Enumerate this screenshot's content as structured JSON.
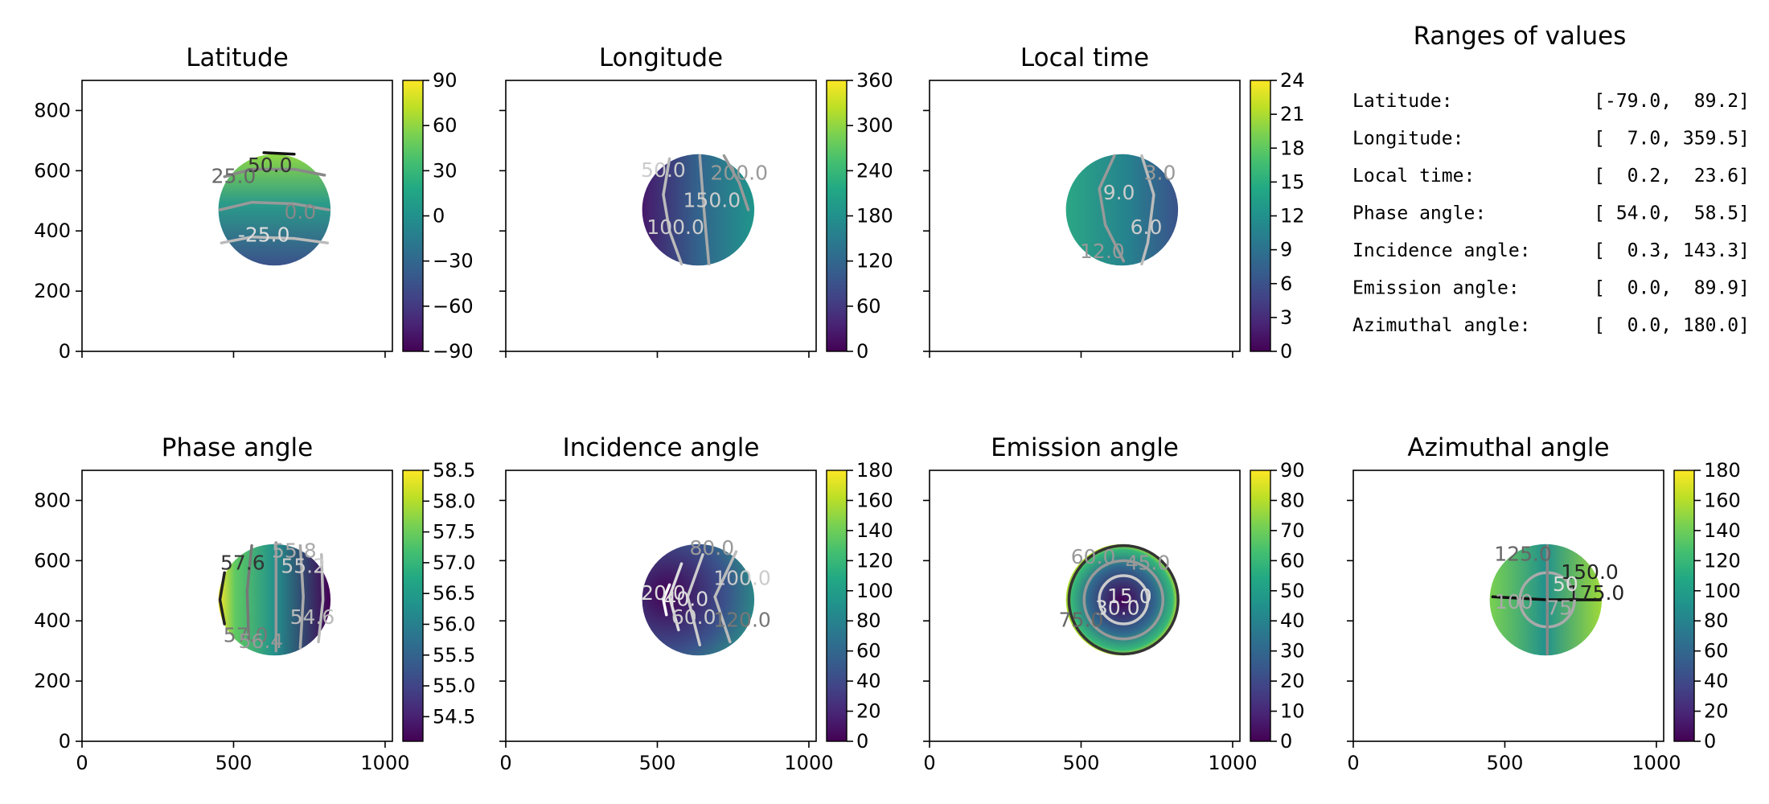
{
  "ranges_panel": {
    "title": "Ranges of values",
    "rows": [
      {
        "label": "Latitude:",
        "value": "[-79.0,  89.2]"
      },
      {
        "label": "Longitude:",
        "value": "[  7.0, 359.5]"
      },
      {
        "label": "Local time:",
        "value": "[  0.2,  23.6]"
      },
      {
        "label": "Phase angle:",
        "value": "[ 54.0,  58.5]"
      },
      {
        "label": "Incidence angle:",
        "value": "[  0.3, 143.3]"
      },
      {
        "label": "Emission angle:",
        "value": "[  0.0,  89.9]"
      },
      {
        "label": "Azimuthal angle:",
        "value": "[  0.0, 180.0]"
      }
    ]
  },
  "chart_data": [
    {
      "type": "heatmap",
      "title": "Latitude",
      "xlim": [
        0,
        1024
      ],
      "ylim": [
        0,
        900
      ],
      "xticks": [
        0,
        500,
        1000
      ],
      "xtick_labels": [],
      "yticks": [
        0,
        200,
        400,
        600,
        800
      ],
      "ytick_labels": [
        "0",
        "200",
        "400",
        "600",
        "800"
      ],
      "disk": {
        "cx": 635,
        "cy": 470,
        "r": 185
      },
      "colorbar": {
        "vmin": -90,
        "vmax": 90,
        "ticks": [
          -90,
          -60,
          -30,
          0,
          30,
          60,
          90
        ],
        "tick_labels": [
          "−90",
          "−60",
          "−30",
          "0",
          "30",
          "60",
          "90"
        ]
      },
      "value_range": [
        -79.0,
        89.2
      ],
      "contour_labels": [
        "50.0",
        "25.0",
        "0.0",
        "-25.0"
      ]
    },
    {
      "type": "heatmap",
      "title": "Longitude",
      "xlim": [
        0,
        1024
      ],
      "ylim": [
        0,
        900
      ],
      "xticks": [
        0,
        500,
        1000
      ],
      "xtick_labels": [],
      "yticks": [
        0,
        200,
        400,
        600,
        800
      ],
      "ytick_labels": [],
      "disk": {
        "cx": 635,
        "cy": 470,
        "r": 185
      },
      "colorbar": {
        "vmin": 0,
        "vmax": 360,
        "ticks": [
          0,
          60,
          120,
          180,
          240,
          300,
          360
        ],
        "tick_labels": [
          "0",
          "60",
          "120",
          "180",
          "240",
          "300",
          "360"
        ]
      },
      "value_range": [
        7.0,
        359.5
      ],
      "contour_labels": [
        "50.0",
        "100.0",
        "150.0",
        "200.0"
      ]
    },
    {
      "type": "heatmap",
      "title": "Local time",
      "xlim": [
        0,
        1024
      ],
      "ylim": [
        0,
        900
      ],
      "xticks": [
        0,
        500,
        1000
      ],
      "xtick_labels": [],
      "yticks": [
        0,
        200,
        400,
        600,
        800
      ],
      "ytick_labels": [],
      "disk": {
        "cx": 635,
        "cy": 470,
        "r": 185
      },
      "colorbar": {
        "vmin": 0,
        "vmax": 24,
        "ticks": [
          0,
          3,
          6,
          9,
          12,
          15,
          18,
          21,
          24
        ],
        "tick_labels": [
          "0",
          "3",
          "6",
          "9",
          "12",
          "15",
          "18",
          "21",
          "24"
        ]
      },
      "value_range": [
        0.2,
        23.6
      ],
      "contour_labels": [
        "9.0",
        "6.0",
        "12.0",
        "3.0"
      ]
    },
    {
      "type": "heatmap",
      "title": "Phase angle",
      "xlim": [
        0,
        1024
      ],
      "ylim": [
        0,
        900
      ],
      "xticks": [
        0,
        500,
        1000
      ],
      "xtick_labels": [],
      "yticks": [
        0,
        200,
        400,
        600,
        800
      ],
      "ytick_labels": [
        "0",
        "200",
        "400",
        "600",
        "800"
      ],
      "disk": {
        "cx": 635,
        "cy": 470,
        "r": 185
      },
      "colorbar": {
        "vmin": 54.1,
        "vmax": 58.5,
        "ticks": [
          54.5,
          55.0,
          55.5,
          56.0,
          56.5,
          57.0,
          57.5,
          58.0,
          58.5
        ],
        "tick_labels": [
          "54.5",
          "55.0",
          "55.5",
          "56.0",
          "56.5",
          "57.0",
          "57.5",
          "58.0",
          "58.5"
        ]
      },
      "value_range": [
        54.0,
        58.5
      ],
      "contour_labels": [
        "57.6",
        "57.0",
        "56.4",
        "55.8",
        "55.2",
        "54.6"
      ]
    },
    {
      "type": "heatmap",
      "title": "Incidence angle",
      "xlim": [
        0,
        1024
      ],
      "ylim": [
        0,
        900
      ],
      "xticks": [
        0,
        500,
        1000
      ],
      "xtick_labels": [],
      "yticks": [
        0,
        200,
        400,
        600,
        800
      ],
      "ytick_labels": [],
      "disk": {
        "cx": 635,
        "cy": 470,
        "r": 185
      },
      "colorbar": {
        "vmin": 0,
        "vmax": 180,
        "ticks": [
          0,
          20,
          40,
          60,
          80,
          100,
          120,
          140,
          160,
          180
        ],
        "tick_labels": [
          "0",
          "20",
          "40",
          "60",
          "80",
          "100",
          "120",
          "140",
          "160",
          "180"
        ]
      },
      "value_range": [
        0.3,
        143.3
      ],
      "contour_labels": [
        "20.0",
        "40.0",
        "60.0",
        "80.0",
        "100.0",
        "120.0"
      ]
    },
    {
      "type": "heatmap",
      "title": "Emission angle",
      "xlim": [
        0,
        1024
      ],
      "ylim": [
        0,
        900
      ],
      "xticks": [
        0,
        500,
        1000
      ],
      "xtick_labels": [],
      "yticks": [
        0,
        200,
        400,
        600,
        800
      ],
      "ytick_labels": [],
      "disk": {
        "cx": 635,
        "cy": 470,
        "r": 185
      },
      "colorbar": {
        "vmin": 0,
        "vmax": 90,
        "ticks": [
          0,
          10,
          20,
          30,
          40,
          50,
          60,
          70,
          80,
          90
        ],
        "tick_labels": [
          "0",
          "10",
          "20",
          "30",
          "40",
          "50",
          "60",
          "70",
          "80",
          "90"
        ]
      },
      "value_range": [
        0.0,
        89.9
      ],
      "contour_labels": [
        "15.0",
        "30.0",
        "45.0",
        "60.0",
        "75.0"
      ]
    },
    {
      "type": "heatmap",
      "title": "Azimuthal angle",
      "xlim": [
        0,
        1024
      ],
      "ylim": [
        0,
        900
      ],
      "xticks": [
        0,
        500,
        1000
      ],
      "xtick_labels": [],
      "yticks": [
        0,
        200,
        400,
        600,
        800
      ],
      "ytick_labels": [],
      "disk": {
        "cx": 635,
        "cy": 470,
        "r": 185
      },
      "colorbar": {
        "vmin": 0,
        "vmax": 180,
        "ticks": [
          0,
          20,
          40,
          60,
          80,
          100,
          120,
          140,
          160,
          180
        ],
        "tick_labels": [
          "0",
          "20",
          "40",
          "60",
          "80",
          "100",
          "120",
          "140",
          "160",
          "180"
        ]
      },
      "value_range": [
        0.0,
        180.0
      ],
      "contour_labels": [
        "125.0",
        "150.0",
        "175.0",
        "100",
        "75",
        "50"
      ]
    }
  ],
  "bottom_xtick_labels": [
    "0",
    "500",
    "1000"
  ]
}
